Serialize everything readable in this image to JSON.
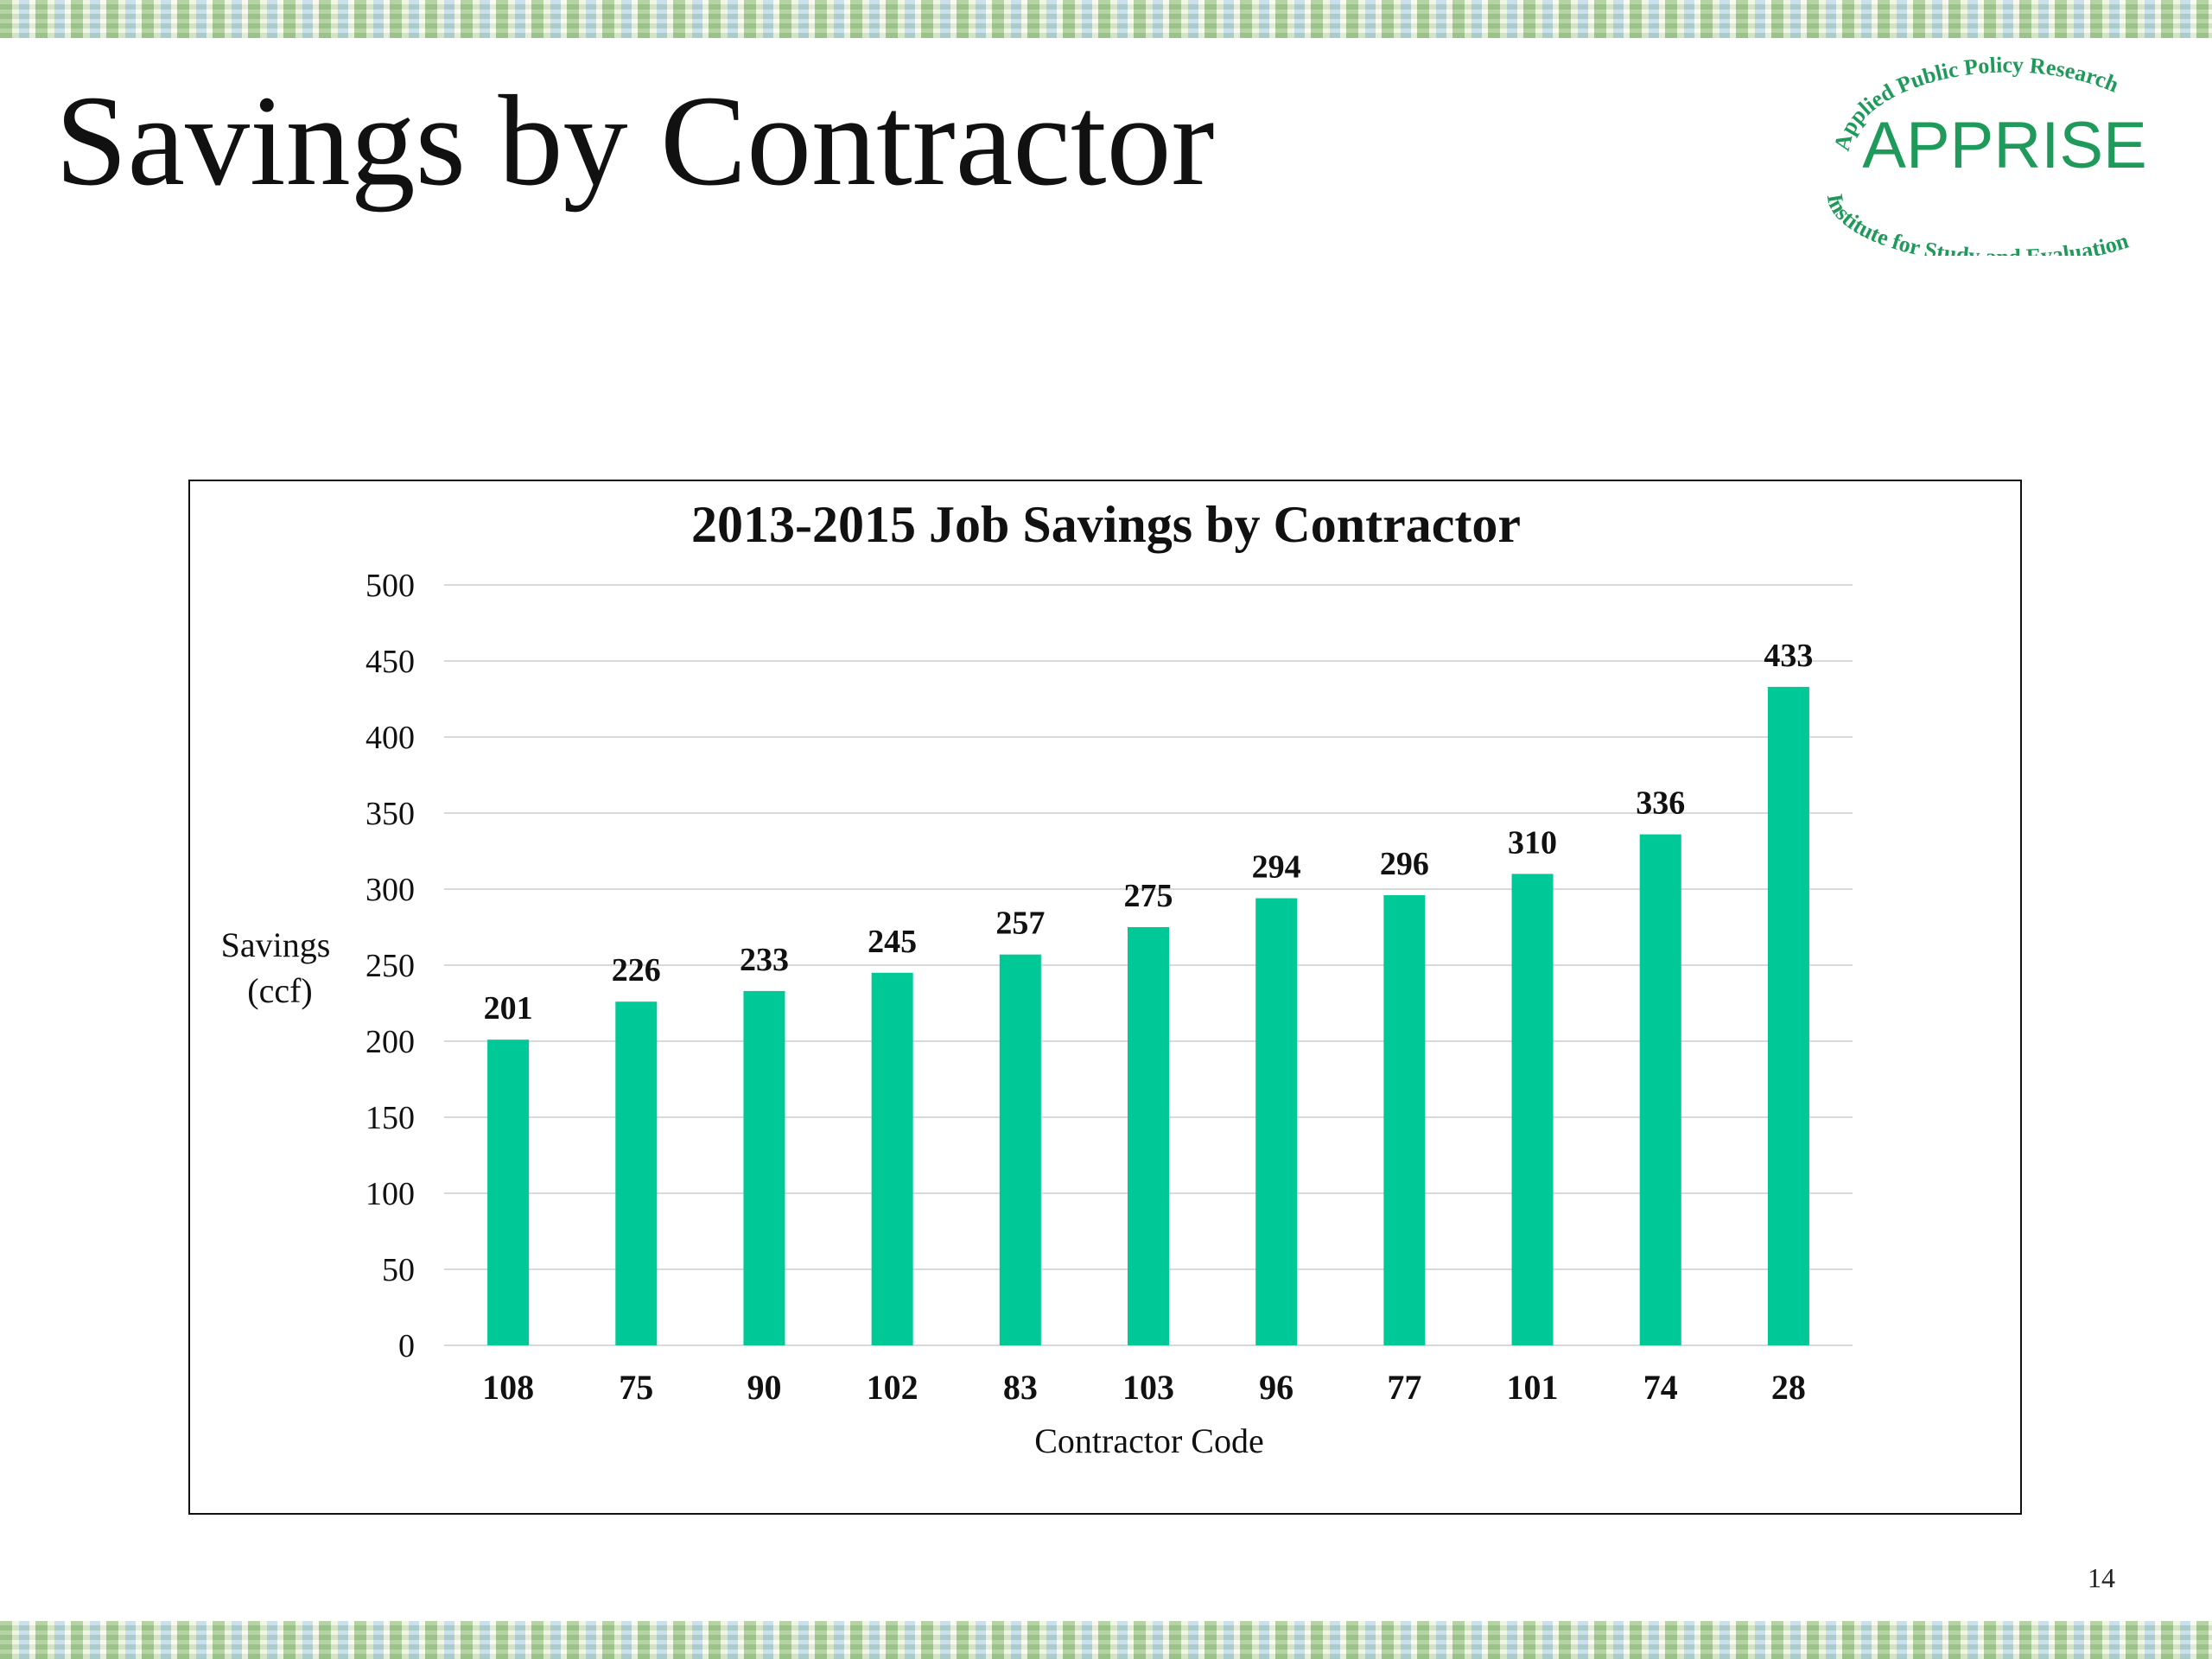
{
  "slide": {
    "title": "Savings by Contractor",
    "page_number": "14"
  },
  "logo": {
    "top_text": "Applied Public Policy Research",
    "name": "APPRISE",
    "bottom_text": "Institute for Study and Evaluation",
    "color": "#1f9a5b"
  },
  "colors": {
    "bar": "#00c896",
    "gridline": "#d9d9d9",
    "text": "#111111"
  },
  "chart_data": {
    "type": "bar",
    "title": "2013-2015 Job Savings by Contractor",
    "xlabel": "Contractor Code",
    "ylabel": "Savings (ccf)",
    "ylabel_lines": [
      "Savings",
      "(ccf)"
    ],
    "ylim": [
      0,
      500
    ],
    "yticks": [
      0,
      50,
      100,
      150,
      200,
      250,
      300,
      350,
      400,
      450,
      500
    ],
    "grid": true,
    "legend": "none",
    "categories": [
      "108",
      "75",
      "90",
      "102",
      "83",
      "103",
      "96",
      "77",
      "101",
      "74",
      "28"
    ],
    "values": [
      201,
      226,
      233,
      245,
      257,
      275,
      294,
      296,
      310,
      336,
      433
    ],
    "data_labels": true
  }
}
